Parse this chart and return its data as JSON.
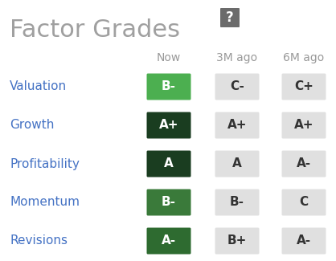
{
  "title": "Factor Grades",
  "background_color": "#ffffff",
  "title_color": "#a0a0a0",
  "title_fontsize": 22,
  "question_mark_bg": "#6b6b6b",
  "question_mark_color": "#ffffff",
  "col_headers": [
    "Now",
    "3M ago",
    "6M ago"
  ],
  "col_header_color": "#999999",
  "col_header_fontsize": 10,
  "row_labels": [
    "Valuation",
    "Growth",
    "Profitability",
    "Momentum",
    "Revisions"
  ],
  "row_label_color": "#4472c4",
  "row_label_fontsize": 11,
  "grades": [
    [
      "B-",
      "C-",
      "C+"
    ],
    [
      "A+",
      "A+",
      "A+"
    ],
    [
      "A",
      "A",
      "A-"
    ],
    [
      "B-",
      "B-",
      "C"
    ],
    [
      "A-",
      "B+",
      "A-"
    ]
  ],
  "now_bg_colors": [
    "#4caf50",
    "#1a3d20",
    "#1a3d20",
    "#3a7a3a",
    "#2e6b30"
  ],
  "now_text_color": "#ffffff",
  "now_fontsize": 11,
  "hist_bg_color": "#e0e0e0",
  "hist_text_color": "#333333",
  "hist_fontsize": 11
}
